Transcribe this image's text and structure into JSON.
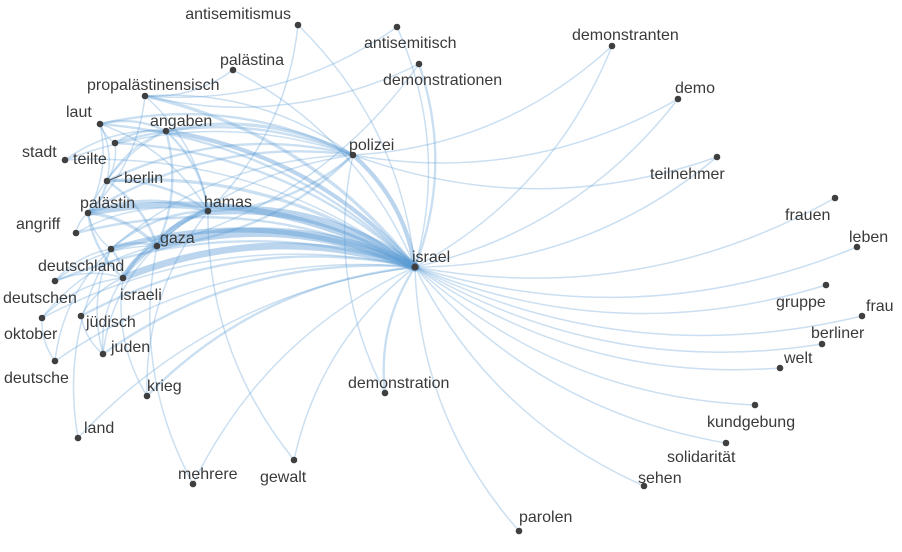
{
  "network": {
    "hub": "israel",
    "nodes": [
      {
        "id": "antisemitismus",
        "label": "antisemitismus"
      },
      {
        "id": "antisemitisch",
        "label": "antisemitisch"
      },
      {
        "id": "palaestina",
        "label": "palästina"
      },
      {
        "id": "demonstranten",
        "label": "demonstranten"
      },
      {
        "id": "demonstrationen",
        "label": "demonstrationen"
      },
      {
        "id": "propalaestinensisch",
        "label": "propalästinensisch"
      },
      {
        "id": "demo",
        "label": "demo"
      },
      {
        "id": "laut",
        "label": "laut"
      },
      {
        "id": "angaben",
        "label": "angaben"
      },
      {
        "id": "polizei",
        "label": "polizei"
      },
      {
        "id": "stadt",
        "label": "stadt"
      },
      {
        "id": "teilte",
        "label": "teilte"
      },
      {
        "id": "teilnehmer",
        "label": "teilnehmer"
      },
      {
        "id": "berlin",
        "label": "berlin"
      },
      {
        "id": "palaestin",
        "label": "palästin"
      },
      {
        "id": "hamas",
        "label": "hamas"
      },
      {
        "id": "frauen",
        "label": "frauen"
      },
      {
        "id": "angriff",
        "label": "angriff"
      },
      {
        "id": "gaza",
        "label": "gaza"
      },
      {
        "id": "leben",
        "label": "leben"
      },
      {
        "id": "israel",
        "label": "israel"
      },
      {
        "id": "deutschland",
        "label": "deutschland"
      },
      {
        "id": "israeli",
        "label": "israeli"
      },
      {
        "id": "deutschen",
        "label": "deutschen"
      },
      {
        "id": "gruppe",
        "label": "gruppe"
      },
      {
        "id": "frau",
        "label": "frau"
      },
      {
        "id": "oktober",
        "label": "oktober"
      },
      {
        "id": "juedisch",
        "label": "jüdisch"
      },
      {
        "id": "berliner",
        "label": "berliner"
      },
      {
        "id": "juden",
        "label": "juden"
      },
      {
        "id": "welt",
        "label": "welt"
      },
      {
        "id": "deutsche",
        "label": "deutsche"
      },
      {
        "id": "krieg",
        "label": "krieg"
      },
      {
        "id": "demonstration",
        "label": "demonstration"
      },
      {
        "id": "kundgebung",
        "label": "kundgebung"
      },
      {
        "id": "land",
        "label": "land"
      },
      {
        "id": "solidaritaet",
        "label": "solidarität"
      },
      {
        "id": "mehrere",
        "label": "mehrere"
      },
      {
        "id": "gewalt",
        "label": "gewalt"
      },
      {
        "id": "sehen",
        "label": "sehen"
      },
      {
        "id": "parolen",
        "label": "parolen"
      }
    ],
    "edges": [
      {
        "source": "israel",
        "target": "gaza",
        "weight": 10
      },
      {
        "source": "israel",
        "target": "hamas",
        "weight": 9
      },
      {
        "source": "israel",
        "target": "israeli",
        "weight": 7
      },
      {
        "source": "israel",
        "target": "palaestin",
        "weight": 6
      },
      {
        "source": "israel",
        "target": "deutschland",
        "weight": 5
      },
      {
        "source": "israel",
        "target": "polizei",
        "weight": 4
      },
      {
        "source": "israel",
        "target": "angaben",
        "weight": 4
      },
      {
        "source": "israel",
        "target": "berlin",
        "weight": 3
      },
      {
        "source": "israel",
        "target": "propalaestinensisch",
        "weight": 3
      },
      {
        "source": "israel",
        "target": "laut",
        "weight": 2
      },
      {
        "source": "israel",
        "target": "teilte",
        "weight": 2
      },
      {
        "source": "israel",
        "target": "stadt",
        "weight": 1
      },
      {
        "source": "israel",
        "target": "angriff",
        "weight": 2
      },
      {
        "source": "israel",
        "target": "deutschen",
        "weight": 2
      },
      {
        "source": "israel",
        "target": "oktober",
        "weight": 1
      },
      {
        "source": "israel",
        "target": "juedisch",
        "weight": 2
      },
      {
        "source": "israel",
        "target": "juden",
        "weight": 2
      },
      {
        "source": "israel",
        "target": "deutsche",
        "weight": 1
      },
      {
        "source": "israel",
        "target": "krieg",
        "weight": 2
      },
      {
        "source": "israel",
        "target": "land",
        "weight": 1
      },
      {
        "source": "israel",
        "target": "mehrere",
        "weight": 1
      },
      {
        "source": "israel",
        "target": "gewalt",
        "weight": 1
      },
      {
        "source": "israel",
        "target": "demonstration",
        "weight": 2
      },
      {
        "source": "israel",
        "target": "parolen",
        "weight": 1
      },
      {
        "source": "israel",
        "target": "sehen",
        "weight": 1
      },
      {
        "source": "israel",
        "target": "solidaritaet",
        "weight": 1
      },
      {
        "source": "israel",
        "target": "kundgebung",
        "weight": 1
      },
      {
        "source": "israel",
        "target": "welt",
        "weight": 1
      },
      {
        "source": "israel",
        "target": "berliner",
        "weight": 1
      },
      {
        "source": "israel",
        "target": "frau",
        "weight": 1
      },
      {
        "source": "israel",
        "target": "gruppe",
        "weight": 1
      },
      {
        "source": "israel",
        "target": "leben",
        "weight": 1
      },
      {
        "source": "israel",
        "target": "frauen",
        "weight": 1
      },
      {
        "source": "israel",
        "target": "teilnehmer",
        "weight": 1
      },
      {
        "source": "israel",
        "target": "demo",
        "weight": 1
      },
      {
        "source": "israel",
        "target": "demonstranten",
        "weight": 1
      },
      {
        "source": "israel",
        "target": "demonstrationen",
        "weight": 2
      },
      {
        "source": "israel",
        "target": "antisemitisch",
        "weight": 1
      },
      {
        "source": "israel",
        "target": "antisemitismus",
        "weight": 1
      },
      {
        "source": "israel",
        "target": "palaestina",
        "weight": 1
      },
      {
        "source": "hamas",
        "target": "gaza",
        "weight": 5
      },
      {
        "source": "hamas",
        "target": "israeli",
        "weight": 3
      },
      {
        "source": "hamas",
        "target": "palaestin",
        "weight": 3
      },
      {
        "source": "hamas",
        "target": "angaben",
        "weight": 2
      },
      {
        "source": "hamas",
        "target": "deutschland",
        "weight": 2
      },
      {
        "source": "hamas",
        "target": "berlin",
        "weight": 2
      },
      {
        "source": "hamas",
        "target": "krieg",
        "weight": 1
      },
      {
        "source": "hamas",
        "target": "angriff",
        "weight": 1
      },
      {
        "source": "hamas",
        "target": "gewalt",
        "weight": 1
      },
      {
        "source": "hamas",
        "target": "antisemitismus",
        "weight": 1
      },
      {
        "source": "hamas",
        "target": "propalaestinensisch",
        "weight": 1
      },
      {
        "source": "hamas",
        "target": "laut",
        "weight": 1
      },
      {
        "source": "hamas",
        "target": "polizei",
        "weight": 2
      },
      {
        "source": "gaza",
        "target": "israeli",
        "weight": 4
      },
      {
        "source": "gaza",
        "target": "palaestin",
        "weight": 3
      },
      {
        "source": "gaza",
        "target": "deutschland",
        "weight": 2
      },
      {
        "source": "gaza",
        "target": "berlin",
        "weight": 2
      },
      {
        "source": "gaza",
        "target": "angaben",
        "weight": 2
      },
      {
        "source": "gaza",
        "target": "polizei",
        "weight": 2
      },
      {
        "source": "gaza",
        "target": "mehrere",
        "weight": 1
      },
      {
        "source": "gaza",
        "target": "juden",
        "weight": 1
      },
      {
        "source": "gaza",
        "target": "deutschen",
        "weight": 1
      },
      {
        "source": "gaza",
        "target": "oktober",
        "weight": 1
      },
      {
        "source": "gaza",
        "target": "demonstrationen",
        "weight": 1
      },
      {
        "source": "polizei",
        "target": "angaben",
        "weight": 3
      },
      {
        "source": "polizei",
        "target": "laut",
        "weight": 2
      },
      {
        "source": "polizei",
        "target": "teilte",
        "weight": 2
      },
      {
        "source": "polizei",
        "target": "berlin",
        "weight": 2
      },
      {
        "source": "polizei",
        "target": "palaestin",
        "weight": 2
      },
      {
        "source": "polizei",
        "target": "stadt",
        "weight": 1
      },
      {
        "source": "polizei",
        "target": "propalaestinensisch",
        "weight": 1
      },
      {
        "source": "polizei",
        "target": "teilnehmer",
        "weight": 1
      },
      {
        "source": "polizei",
        "target": "demonstranten",
        "weight": 1
      },
      {
        "source": "polizei",
        "target": "demo",
        "weight": 1
      },
      {
        "source": "polizei",
        "target": "demonstration",
        "weight": 1
      },
      {
        "source": "polizei",
        "target": "deutschland",
        "weight": 1
      },
      {
        "source": "polizei",
        "target": "israeli",
        "weight": 1
      },
      {
        "source": "angaben",
        "target": "laut",
        "weight": 2
      },
      {
        "source": "angaben",
        "target": "teilte",
        "weight": 2
      },
      {
        "source": "angaben",
        "target": "berlin",
        "weight": 1
      },
      {
        "source": "angaben",
        "target": "palaestin",
        "weight": 1
      },
      {
        "source": "angaben",
        "target": "stadt",
        "weight": 1
      },
      {
        "source": "palaestin",
        "target": "berlin",
        "weight": 2
      },
      {
        "source": "palaestin",
        "target": "israeli",
        "weight": 2
      },
      {
        "source": "palaestin",
        "target": "deutschland",
        "weight": 1
      },
      {
        "source": "palaestin",
        "target": "angriff",
        "weight": 1
      },
      {
        "source": "palaestin",
        "target": "propalaestinensisch",
        "weight": 1
      },
      {
        "source": "palaestin",
        "target": "laut",
        "weight": 1
      },
      {
        "source": "israeli",
        "target": "deutschland",
        "weight": 2
      },
      {
        "source": "israeli",
        "target": "juedisch",
        "weight": 1
      },
      {
        "source": "israeli",
        "target": "juden",
        "weight": 1
      },
      {
        "source": "israeli",
        "target": "deutschen",
        "weight": 1
      },
      {
        "source": "israeli",
        "target": "oktober",
        "weight": 1
      },
      {
        "source": "israeli",
        "target": "krieg",
        "weight": 1
      },
      {
        "source": "deutschland",
        "target": "deutschen",
        "weight": 1
      },
      {
        "source": "deutschland",
        "target": "juden",
        "weight": 1
      },
      {
        "source": "deutschland",
        "target": "land",
        "weight": 1
      },
      {
        "source": "deutschland",
        "target": "deutsche",
        "weight": 1
      },
      {
        "source": "berlin",
        "target": "teilte",
        "weight": 1
      },
      {
        "source": "berlin",
        "target": "laut",
        "weight": 1
      },
      {
        "source": "propalaestinensisch",
        "target": "palaestina",
        "weight": 1
      },
      {
        "source": "propalaestinensisch",
        "target": "demonstrationen",
        "weight": 1
      },
      {
        "source": "propalaestinensisch",
        "target": "antisemitisch",
        "weight": 1
      },
      {
        "source": "laut",
        "target": "teilte",
        "weight": 1
      },
      {
        "source": "juedisch",
        "target": "juden",
        "weight": 1
      },
      {
        "source": "oktober",
        "target": "deutsche",
        "weight": 1
      }
    ]
  },
  "style": {
    "edge_color": "#5b9bd5",
    "node_color": "#3f3f3f",
    "label_color": "#3a3a3a",
    "background": "#ffffff"
  }
}
